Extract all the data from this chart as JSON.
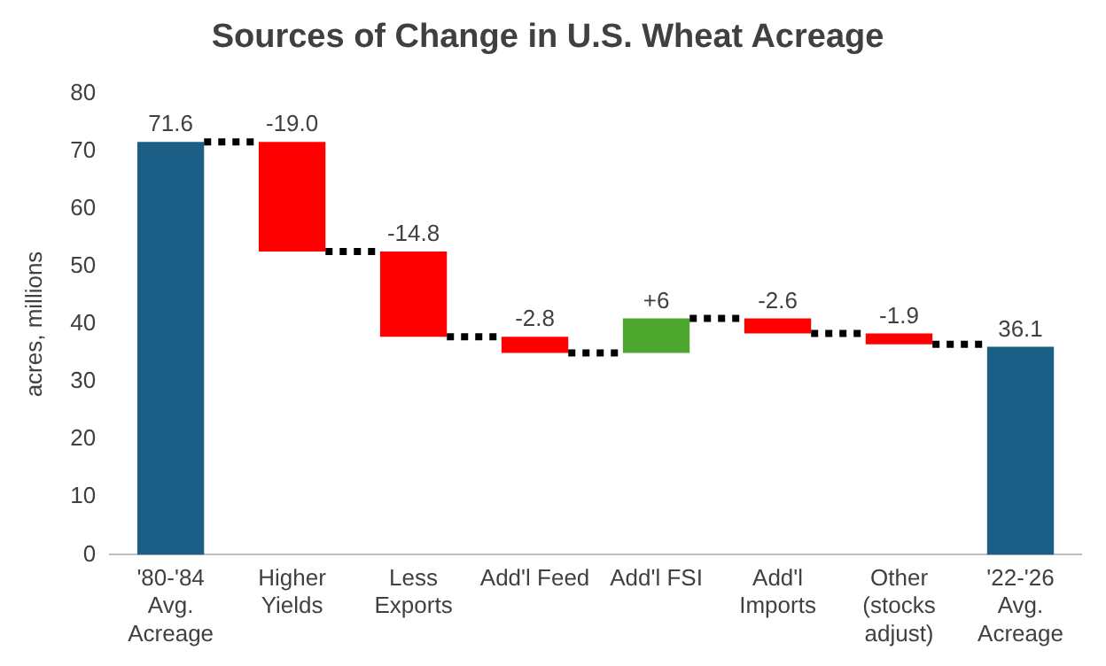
{
  "chart_data": {
    "type": "bar",
    "title": "Sources of Change in U.S. Wheat Acreage",
    "ylabel": "acres, millions",
    "categories": [
      "'80-'84 Avg. Acreage",
      "Higher Yields",
      "Less Exports",
      "Add'l Feed",
      "Add'l FSI",
      "Add'l Imports",
      "Other (stocks adjust)",
      "'22-'26 Avg. Acreage"
    ],
    "values": [
      71.6,
      -19.0,
      -14.8,
      -2.8,
      6,
      -2.6,
      -1.9,
      36.1
    ],
    "base": [
      0,
      71.6,
      52.6,
      37.8,
      35.0,
      41.0,
      38.4,
      0
    ],
    "value_labels": [
      "71.6",
      "-19.0",
      "-14.8",
      "-2.8",
      "+6",
      "-2.6",
      "-1.9",
      "36.1"
    ],
    "colors": [
      "#1b5e86",
      "#ff0000",
      "#ff0000",
      "#ff0000",
      "#4ea72e",
      "#ff0000",
      "#ff0000",
      "#1b5e86"
    ],
    "ylim": [
      0,
      80
    ],
    "yticks": [
      0,
      10,
      20,
      30,
      40,
      50,
      60,
      70,
      80
    ],
    "grid": false,
    "legend": false
  }
}
